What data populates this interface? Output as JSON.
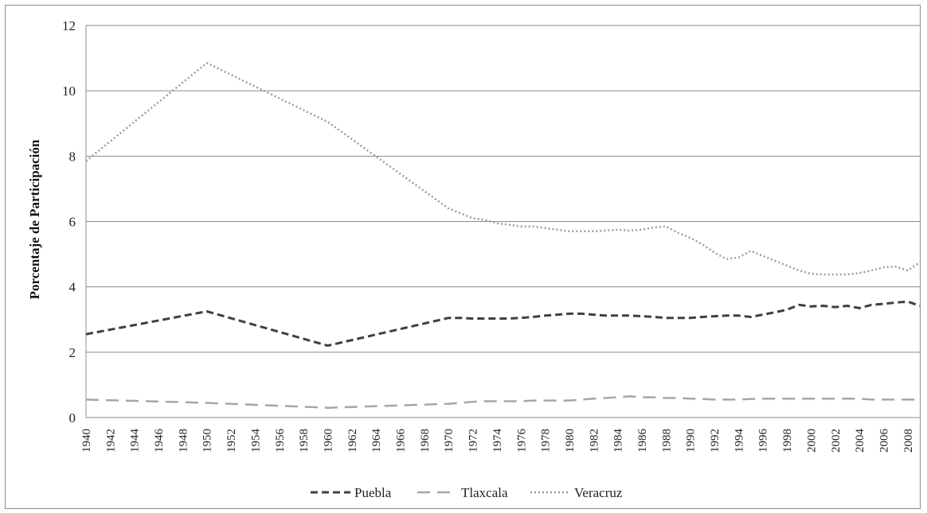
{
  "chart_data": {
    "type": "line",
    "title": "",
    "xlabel": "",
    "ylabel": "Porcentaje de Participación",
    "xlim": [
      1940,
      2009
    ],
    "ylim": [
      0,
      12
    ],
    "yticks": [
      "0",
      "2",
      "4",
      "6",
      "8",
      "10",
      "12"
    ],
    "xticks": [
      "1940",
      "1942",
      "1944",
      "1946",
      "1948",
      "1950",
      "1952",
      "1954",
      "1956",
      "1958",
      "1960",
      "1962",
      "1964",
      "1966",
      "1968",
      "1970",
      "1972",
      "1974",
      "1976",
      "1978",
      "1980",
      "1982",
      "1984",
      "1986",
      "1988",
      "1990",
      "1992",
      "1994",
      "1996",
      "1998",
      "2000",
      "2002",
      "2004",
      "2006",
      "2008"
    ],
    "grid": "horizontal",
    "legend_position": "bottom",
    "x": [
      1940,
      1950,
      1960,
      1970,
      1971,
      1972,
      1973,
      1974,
      1975,
      1976,
      1977,
      1978,
      1979,
      1980,
      1981,
      1982,
      1983,
      1984,
      1985,
      1986,
      1987,
      1988,
      1989,
      1990,
      1991,
      1992,
      1993,
      1994,
      1995,
      1996,
      1997,
      1998,
      1999,
      2000,
      2001,
      2002,
      2003,
      2004,
      2005,
      2006,
      2007,
      2008,
      2009
    ],
    "series": [
      {
        "name": "Puebla",
        "color": "#404040",
        "dash": "dash",
        "values": [
          2.55,
          3.25,
          2.2,
          3.05,
          3.05,
          3.03,
          3.03,
          3.03,
          3.03,
          3.05,
          3.08,
          3.12,
          3.15,
          3.18,
          3.18,
          3.15,
          3.12,
          3.12,
          3.12,
          3.1,
          3.08,
          3.05,
          3.05,
          3.05,
          3.08,
          3.1,
          3.12,
          3.12,
          3.08,
          3.15,
          3.22,
          3.3,
          3.45,
          3.4,
          3.42,
          3.38,
          3.42,
          3.35,
          3.45,
          3.48,
          3.52,
          3.55,
          3.42
        ]
      },
      {
        "name": "Tlaxcala",
        "color": "#a6a6a6",
        "dash": "longdash",
        "values": [
          0.55,
          0.45,
          0.3,
          0.42,
          0.45,
          0.48,
          0.5,
          0.5,
          0.5,
          0.5,
          0.52,
          0.52,
          0.52,
          0.52,
          0.55,
          0.58,
          0.6,
          0.62,
          0.65,
          0.62,
          0.62,
          0.6,
          0.6,
          0.58,
          0.57,
          0.55,
          0.55,
          0.55,
          0.57,
          0.58,
          0.58,
          0.58,
          0.58,
          0.58,
          0.58,
          0.58,
          0.58,
          0.58,
          0.55,
          0.55,
          0.55,
          0.55,
          0.55
        ]
      },
      {
        "name": "Veracruz",
        "color": "#9c9c9c",
        "dash": "dot",
        "values": [
          7.85,
          10.85,
          9.05,
          6.4,
          6.25,
          6.1,
          6.05,
          5.95,
          5.9,
          5.85,
          5.85,
          5.8,
          5.75,
          5.7,
          5.7,
          5.7,
          5.72,
          5.75,
          5.72,
          5.75,
          5.82,
          5.85,
          5.65,
          5.5,
          5.3,
          5.05,
          4.85,
          4.9,
          5.1,
          4.95,
          4.8,
          4.65,
          4.5,
          4.4,
          4.38,
          4.38,
          4.38,
          4.42,
          4.5,
          4.6,
          4.62,
          4.5,
          4.75
        ]
      }
    ]
  }
}
